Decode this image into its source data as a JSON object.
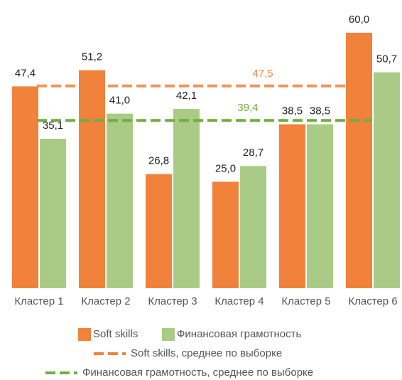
{
  "chart_data": {
    "type": "bar",
    "categories": [
      "Кластер 1",
      "Кластер 2",
      "Кластер 3",
      "Кластер 4",
      "Кластер 5",
      "Кластер 6"
    ],
    "series": [
      {
        "name": "Soft skills",
        "color": "#f0823c",
        "values": [
          47.4,
          51.2,
          26.8,
          25.0,
          38.5,
          60.0
        ],
        "value_labels": [
          "47,4",
          "51,2",
          "26,8",
          "25,0",
          "38,5",
          "60,0"
        ]
      },
      {
        "name": "Финансовая грамотность",
        "color": "#a9cb86",
        "values": [
          35.1,
          41.0,
          42.1,
          28.7,
          38.5,
          50.7
        ],
        "value_labels": [
          "35,1",
          "41,0",
          "42,1",
          "28,7",
          "38,5",
          "50,7"
        ]
      }
    ],
    "reference_lines": [
      {
        "name": "Soft skills, среднее по выборке",
        "value": 47.5,
        "value_label": "47,5",
        "color": "#f0823c"
      },
      {
        "name": "Финансовая грамотность, среднее по выборке",
        "value": 39.4,
        "value_label": "39,4",
        "color": "#6fae3f"
      }
    ],
    "ylim": [
      0,
      60
    ],
    "grid": false
  }
}
